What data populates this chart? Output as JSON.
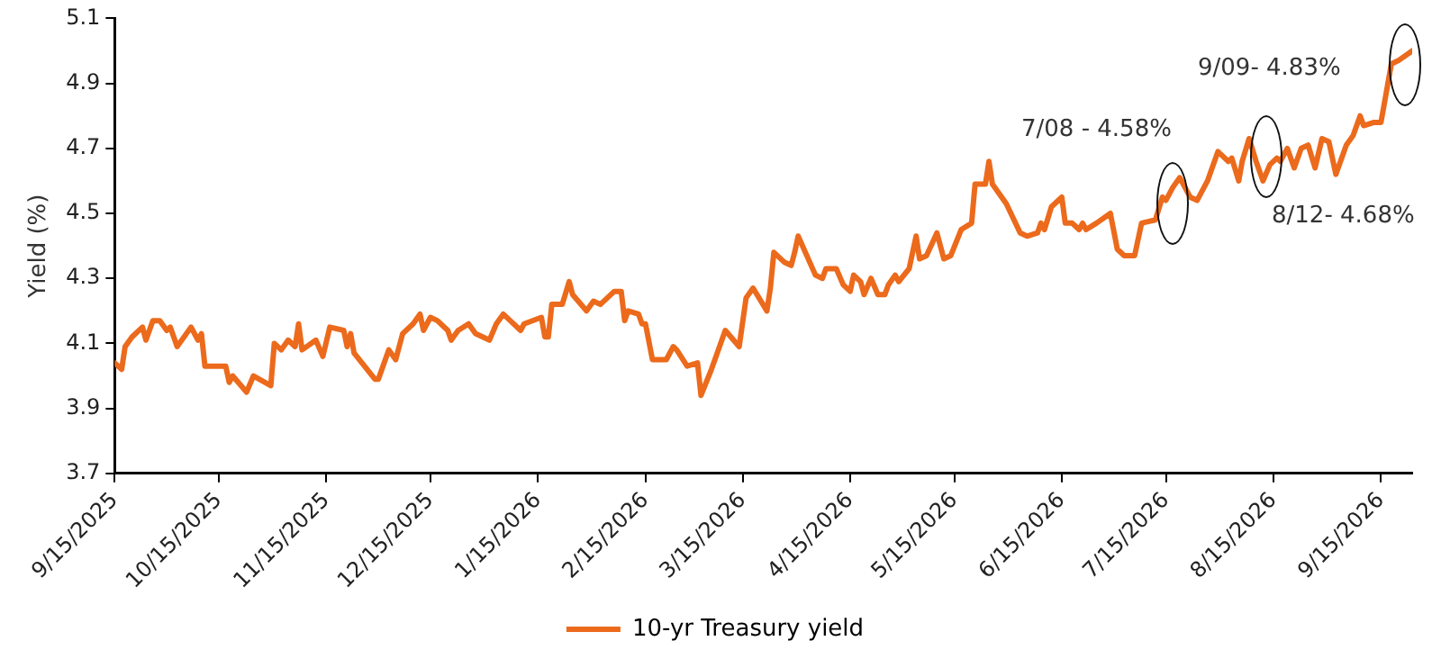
{
  "chart_data": {
    "type": "line",
    "ylabel": "Yield (%)",
    "legend": "bottom",
    "grid": false,
    "marker": "none",
    "line_style": "solid",
    "xlim": [
      "2025-09-15",
      "2026-09-24"
    ],
    "xticks": [
      {
        "value": "2025-09-15",
        "label": "9/15/2025"
      },
      {
        "value": "2025-10-15",
        "label": "10/15/2025"
      },
      {
        "value": "2025-11-15",
        "label": "11/15/2025"
      },
      {
        "value": "2025-12-15",
        "label": "12/15/2025"
      },
      {
        "value": "2026-01-15",
        "label": "1/15/2026"
      },
      {
        "value": "2026-02-15",
        "label": "2/15/2026"
      },
      {
        "value": "2026-03-15",
        "label": "3/15/2026"
      },
      {
        "value": "2026-04-15",
        "label": "4/15/2026"
      },
      {
        "value": "2026-05-15",
        "label": "5/15/2026"
      },
      {
        "value": "2026-06-15",
        "label": "6/15/2026"
      },
      {
        "value": "2026-07-15",
        "label": "7/15/2026"
      },
      {
        "value": "2026-08-15",
        "label": "8/15/2026"
      },
      {
        "value": "2026-09-15",
        "label": "9/15/2026"
      }
    ],
    "ylim": [
      3.7,
      5.1
    ],
    "yticks": [
      3.7,
      3.9,
      4.1,
      4.3,
      4.5,
      4.7,
      4.9,
      5.1
    ],
    "annotations": [
      "7/08 - 4.58%",
      "8/12- 4.68%",
      "9/09- 4.83%"
    ],
    "x": [
      "2025-09-15",
      "2025-09-17",
      "2025-09-18",
      "2025-09-20",
      "2025-09-23",
      "2025-09-24",
      "2025-09-26",
      "2025-09-28",
      "2025-09-30",
      "2025-10-01",
      "2025-10-03",
      "2025-10-07",
      "2025-10-09",
      "2025-10-10",
      "2025-10-11",
      "2025-10-17",
      "2025-10-18",
      "2025-10-19",
      "2025-10-23",
      "2025-10-25",
      "2025-10-30",
      "2025-10-31",
      "2025-11-02",
      "2025-11-04",
      "2025-11-06",
      "2025-11-07",
      "2025-11-08",
      "2025-11-12",
      "2025-11-14",
      "2025-11-16",
      "2025-11-20",
      "2025-11-21",
      "2025-11-22",
      "2025-11-23",
      "2025-11-29",
      "2025-11-30",
      "2025-12-03",
      "2025-12-05",
      "2025-12-07",
      "2025-12-10",
      "2025-12-12",
      "2025-12-13",
      "2025-12-15",
      "2025-12-17",
      "2025-12-20",
      "2025-12-21",
      "2025-12-23",
      "2025-12-26",
      "2025-12-28",
      "2026-01-01",
      "2026-01-03",
      "2026-01-05",
      "2026-01-07",
      "2026-01-10",
      "2026-01-11",
      "2026-01-16",
      "2026-01-17",
      "2026-01-18",
      "2026-01-19",
      "2026-01-22",
      "2026-01-24",
      "2026-01-25",
      "2026-01-29",
      "2026-01-31",
      "2026-02-02",
      "2026-02-06",
      "2026-02-08",
      "2026-02-09",
      "2026-02-10",
      "2026-02-13",
      "2026-02-14",
      "2026-02-15",
      "2026-02-17",
      "2026-02-21",
      "2026-02-23",
      "2026-02-24",
      "2026-02-27",
      "2026-03-02",
      "2026-03-03",
      "2026-03-06",
      "2026-03-07",
      "2026-03-10",
      "2026-03-14",
      "2026-03-16",
      "2026-03-18",
      "2026-03-22",
      "2026-03-23",
      "2026-03-24",
      "2026-03-27",
      "2026-03-29",
      "2026-03-30",
      "2026-03-31",
      "2026-04-05",
      "2026-04-07",
      "2026-04-08",
      "2026-04-11",
      "2026-04-13",
      "2026-04-15",
      "2026-04-16",
      "2026-04-18",
      "2026-04-19",
      "2026-04-21",
      "2026-04-23",
      "2026-04-25",
      "2026-04-26",
      "2026-04-28",
      "2026-04-29",
      "2026-05-02",
      "2026-05-04",
      "2026-05-05",
      "2026-05-07",
      "2026-05-10",
      "2026-05-12",
      "2026-05-14",
      "2026-05-17",
      "2026-05-20",
      "2026-05-21",
      "2026-05-24",
      "2026-05-25",
      "2026-05-26",
      "2026-05-30",
      "2026-06-03",
      "2026-06-05",
      "2026-06-08",
      "2026-06-09",
      "2026-06-10",
      "2026-06-12",
      "2026-06-15",
      "2026-06-16",
      "2026-06-18",
      "2026-06-20",
      "2026-06-21",
      "2026-06-22",
      "2026-06-25",
      "2026-06-29",
      "2026-07-01",
      "2026-07-03",
      "2026-07-06",
      "2026-07-08",
      "2026-07-12",
      "2026-07-14",
      "2026-07-15",
      "2026-07-17",
      "2026-07-19",
      "2026-07-22",
      "2026-07-24",
      "2026-07-27",
      "2026-07-30",
      "2026-08-02",
      "2026-08-03",
      "2026-08-05",
      "2026-08-06",
      "2026-08-08",
      "2026-08-10",
      "2026-08-12",
      "2026-08-14",
      "2026-08-16",
      "2026-08-17",
      "2026-08-19",
      "2026-08-21",
      "2026-08-23",
      "2026-08-25",
      "2026-08-27",
      "2026-08-29",
      "2026-08-31",
      "2026-09-02",
      "2026-09-05",
      "2026-09-07",
      "2026-09-09",
      "2026-09-10",
      "2026-09-13",
      "2026-09-15",
      "2026-09-18",
      "2026-09-20",
      "2026-09-24"
    ],
    "series": [
      {
        "name": "10-yr Treasury yield",
        "color": "#ec6a1c",
        "values": [
          4.04,
          4.02,
          4.09,
          4.12,
          4.15,
          4.11,
          4.17,
          4.17,
          4.14,
          4.15,
          4.09,
          4.15,
          4.11,
          4.13,
          4.03,
          4.03,
          3.98,
          4.0,
          3.95,
          4.0,
          3.97,
          4.1,
          4.08,
          4.11,
          4.09,
          4.16,
          4.08,
          4.11,
          4.06,
          4.15,
          4.14,
          4.09,
          4.13,
          4.07,
          3.99,
          3.99,
          4.08,
          4.05,
          4.13,
          4.16,
          4.19,
          4.14,
          4.18,
          4.17,
          4.14,
          4.11,
          4.14,
          4.16,
          4.13,
          4.11,
          4.16,
          4.19,
          4.17,
          4.14,
          4.16,
          4.18,
          4.12,
          4.12,
          4.22,
          4.22,
          4.29,
          4.25,
          4.2,
          4.23,
          4.22,
          4.26,
          4.26,
          4.17,
          4.2,
          4.19,
          4.16,
          4.16,
          4.05,
          4.05,
          4.09,
          4.08,
          4.03,
          4.04,
          3.94,
          4.02,
          4.05,
          4.14,
          4.09,
          4.24,
          4.27,
          4.2,
          4.27,
          4.38,
          4.35,
          4.34,
          4.38,
          4.43,
          4.31,
          4.3,
          4.33,
          4.33,
          4.28,
          4.26,
          4.31,
          4.29,
          4.25,
          4.3,
          4.25,
          4.25,
          4.28,
          4.31,
          4.29,
          4.33,
          4.43,
          4.36,
          4.37,
          4.44,
          4.36,
          4.37,
          4.45,
          4.47,
          4.59,
          4.59,
          4.66,
          4.59,
          4.53,
          4.44,
          4.43,
          4.44,
          4.47,
          4.45,
          4.52,
          4.55,
          4.47,
          4.47,
          4.45,
          4.47,
          4.45,
          4.47,
          4.5,
          4.39,
          4.37,
          4.37,
          4.47,
          4.48,
          4.55,
          4.54,
          4.58,
          4.61,
          4.55,
          4.54,
          4.6,
          4.69,
          4.66,
          4.67,
          4.6,
          4.66,
          4.73,
          4.66,
          4.6,
          4.65,
          4.67,
          4.66,
          4.7,
          4.64,
          4.7,
          4.71,
          4.64,
          4.73,
          4.72,
          4.62,
          4.71,
          4.74,
          4.8,
          4.77,
          4.78,
          4.78,
          4.96,
          4.97,
          5.0
        ]
      }
    ]
  }
}
